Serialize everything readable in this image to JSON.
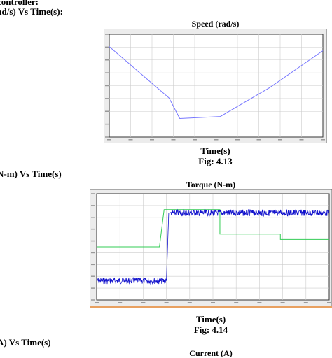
{
  "page": {
    "controller_line": "controller:",
    "speed_heading": "ad/s) Vs Time(s):",
    "torque_heading": "N-m) Vs Time(s)",
    "current_heading": "A) Vs Time(s)"
  },
  "figures": [
    {
      "title": "Speed (rad/s)",
      "xlabel": "Time(s)",
      "caption": "Fig: 4.13"
    },
    {
      "title": "Torque (N-m)",
      "xlabel": "Time(s)",
      "caption": "Fig: 4.14"
    },
    {
      "title": "Current (A)"
    }
  ],
  "chart_data": [
    {
      "type": "line",
      "title": "Speed (rad/s)",
      "xlabel": "Time(s)",
      "xlim": [
        0,
        1
      ],
      "ylim": [
        0,
        1
      ],
      "grid": true,
      "colors": {
        "line": "#7777ff",
        "grid": "#cccccc",
        "axis": "#333333"
      },
      "series": [
        {
          "x": [
            0,
            0.28,
            0.33,
            0.52,
            0.75,
            1.0
          ],
          "y": [
            0.88,
            0.38,
            0.18,
            0.2,
            0.48,
            0.84
          ]
        }
      ]
    },
    {
      "type": "line",
      "title": "Torque (N-m)",
      "xlabel": "Time(s)",
      "xlim": [
        0,
        1
      ],
      "ylim": [
        0,
        1
      ],
      "grid": true,
      "colors": {
        "reference": "#33cc55",
        "actual": "#1111cc",
        "grid": "#cccccc",
        "axis": "#333333",
        "status_bar": "#e8a060"
      },
      "series": [
        {
          "x": [
            0,
            0.27,
            0.29,
            0.33,
            0.53,
            0.53,
            0.79,
            0.79,
            1.0
          ],
          "y": [
            0.5,
            0.5,
            0.85,
            0.85,
            0.85,
            0.62,
            0.62,
            0.57,
            0.57
          ]
        },
        {
          "x": [
            0,
            0.3,
            0.31,
            0.32,
            0.53,
            1.0
          ],
          "y": [
            0.18,
            0.18,
            0.82,
            0.82,
            0.82,
            0.82
          ],
          "noise": 0.03
        }
      ]
    }
  ]
}
